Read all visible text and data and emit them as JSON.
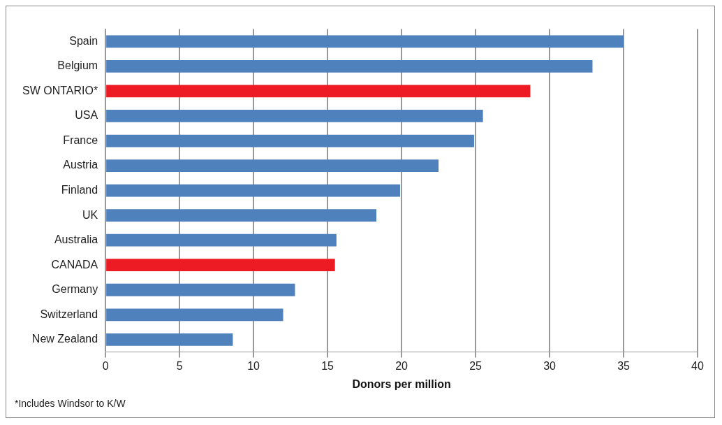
{
  "chart_data": {
    "type": "bar",
    "orientation": "horizontal",
    "categories": [
      "Spain",
      "Belgium",
      "SW ONTARIO*",
      "USA",
      "France",
      "Austria",
      "Finland",
      "UK",
      "Australia",
      "CANADA",
      "Germany",
      "Switzerland",
      "New Zealand"
    ],
    "values": [
      35.0,
      32.9,
      28.7,
      25.5,
      24.9,
      22.5,
      19.9,
      18.3,
      15.6,
      15.5,
      12.8,
      12.0,
      8.6
    ],
    "colors": [
      "#4f81bd",
      "#4f81bd",
      "#ed1c24",
      "#4f81bd",
      "#4f81bd",
      "#4f81bd",
      "#4f81bd",
      "#4f81bd",
      "#4f81bd",
      "#ed1c24",
      "#4f81bd",
      "#4f81bd",
      "#4f81bd"
    ],
    "xlabel": "Donors per million",
    "xlim": [
      0,
      40
    ],
    "xticks": [
      0,
      5,
      10,
      15,
      20,
      25,
      30,
      35,
      40
    ],
    "grid": "x",
    "legend": false,
    "annotations": [
      "*Includes Windsor to K/W"
    ]
  }
}
